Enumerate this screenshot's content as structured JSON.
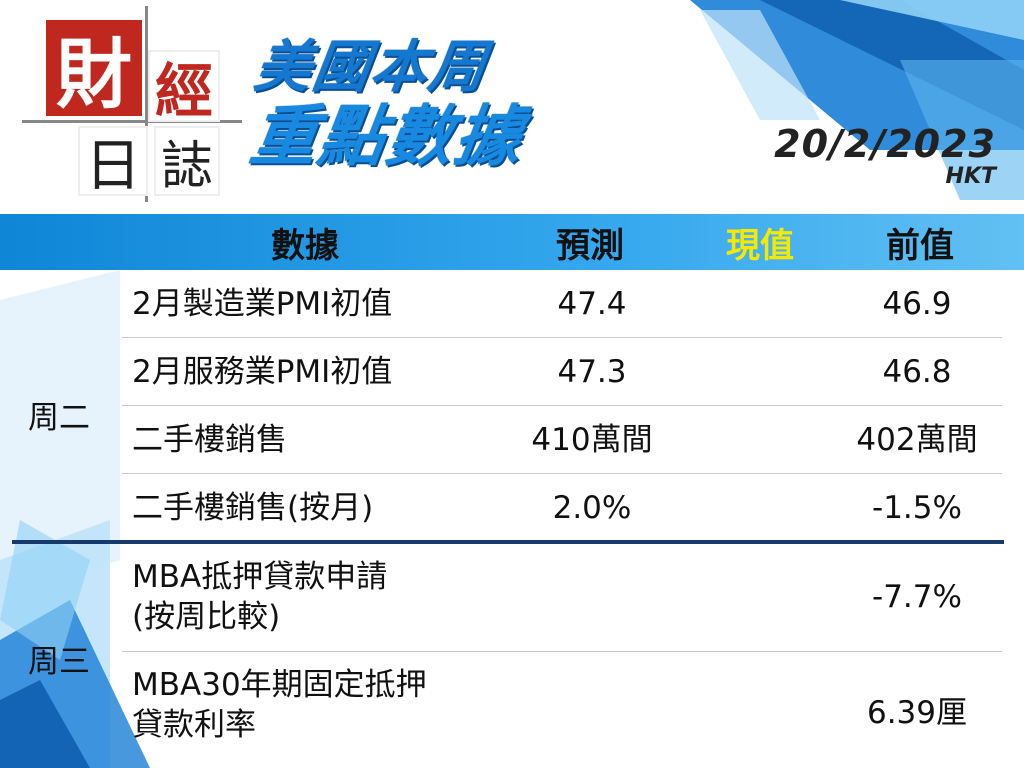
{
  "logo": {
    "cai": "財",
    "jing": "經",
    "ri": "日",
    "zhi": "誌"
  },
  "title": {
    "line1": "美國本周",
    "line2": "重點數據"
  },
  "date": {
    "value": "20/2/2023",
    "timezone": "HKT"
  },
  "header": {
    "data": "數據",
    "forecast": "預測",
    "actual": "現值",
    "previous": "前值"
  },
  "colors": {
    "accent": "#1a7ed6",
    "header_band": "#35a8ee",
    "actual_header": "#f6e800",
    "logo_red": "#c0281f",
    "divider": "#163a6b"
  },
  "groups": [
    {
      "day": "周二",
      "rows": [
        {
          "name": "2月製造業PMI初值",
          "forecast": "47.4",
          "actual": "",
          "previous": "46.9"
        },
        {
          "name": "2月服務業PMI初值",
          "forecast": "47.3",
          "actual": "",
          "previous": "46.8"
        },
        {
          "name": "二手樓銷售",
          "forecast": "410萬間",
          "actual": "",
          "previous": "402萬間"
        },
        {
          "name": "二手樓銷售(按月)",
          "forecast": "2.0%",
          "actual": "",
          "previous": "-1.5%"
        }
      ]
    },
    {
      "day": "周三",
      "rows": [
        {
          "name_line1": "MBA抵押貸款申請",
          "name_line2": "(按周比較)",
          "forecast": "",
          "actual": "",
          "previous": "-7.7%"
        },
        {
          "name_line1": "MBA30年期固定抵押",
          "name_line2": "貸款利率",
          "forecast": "",
          "actual": "",
          "previous": "6.39厘"
        }
      ]
    }
  ]
}
